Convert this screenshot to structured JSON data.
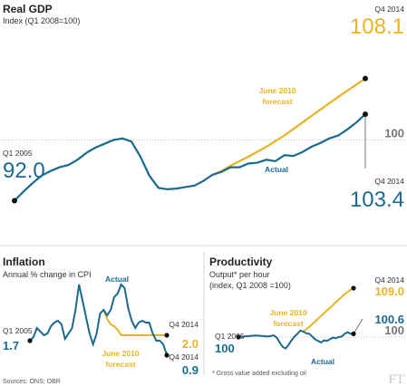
{
  "colors": {
    "actual": "#1a6a8f",
    "forecast": "#e8b424",
    "grid": "#aaaaaa",
    "marker": "#111111"
  },
  "chart_data": [
    {
      "type": "line",
      "title": "Real GDP",
      "subtitle": "Index (Q1 2008=100)",
      "reference_value": 100,
      "reference_label": "100",
      "ylim": [
        88,
        112
      ],
      "series": [
        {
          "name": "Actual",
          "x": [
            2005.0,
            2005.25,
            2005.5,
            2005.75,
            2006.0,
            2006.25,
            2006.5,
            2006.75,
            2007.0,
            2007.25,
            2007.5,
            2007.75,
            2008.0,
            2008.25,
            2008.5,
            2008.75,
            2009.0,
            2009.25,
            2009.5,
            2009.75,
            2010.0,
            2010.25,
            2010.5,
            2010.75,
            2011.0,
            2011.25,
            2011.5,
            2011.75,
            2012.0,
            2012.25,
            2012.5,
            2012.75,
            2013.0,
            2013.25,
            2013.5,
            2013.75,
            2014.0,
            2014.25,
            2014.5,
            2014.75
          ],
          "values": [
            92.0,
            93.2,
            94.3,
            95.3,
            95.9,
            96.4,
            96.7,
            97.4,
            98.3,
            99.0,
            99.5,
            100.0,
            100.2,
            99.8,
            97.8,
            95.3,
            93.7,
            93.5,
            93.6,
            93.8,
            94.0,
            94.6,
            95.4,
            95.8,
            96.4,
            96.4,
            96.9,
            97.0,
            97.4,
            97.2,
            98.0,
            97.9,
            98.4,
            99.1,
            99.6,
            100.2,
            100.6,
            101.4,
            102.3,
            103.4
          ]
        },
        {
          "name": "June 2010 forecast",
          "x": [
            2010.5,
            2010.75,
            2011.0,
            2011.5,
            2012.0,
            2012.5,
            2013.0,
            2013.5,
            2014.0,
            2014.5,
            2014.75
          ],
          "values": [
            95.4,
            95.9,
            96.6,
            97.8,
            99.1,
            100.6,
            102.3,
            104.0,
            105.7,
            107.3,
            108.1
          ]
        }
      ],
      "labels": {
        "start_period": "Q1 2005",
        "start_value": "92.0",
        "end_period_forecast": "Q4 2014",
        "end_value_forecast": "108.1",
        "end_period_actual": "Q4 2014",
        "end_value_actual": "103.4",
        "forecast_line1": "June 2010",
        "forecast_line2": "forecast",
        "actual": "Actual"
      }
    },
    {
      "type": "line",
      "title": "Inflation",
      "subtitle": "Annual % change in CPI",
      "ylim": [
        0,
        5.5
      ],
      "series": [
        {
          "name": "Actual",
          "x": [
            2005.0,
            2005.25,
            2005.5,
            2005.75,
            2006.0,
            2006.25,
            2006.5,
            2006.75,
            2007.0,
            2007.25,
            2007.5,
            2007.75,
            2008.0,
            2008.25,
            2008.5,
            2008.75,
            2009.0,
            2009.25,
            2009.5,
            2009.75,
            2010.0,
            2010.25,
            2010.5,
            2010.75,
            2011.0,
            2011.25,
            2011.5,
            2011.75,
            2012.0,
            2012.25,
            2012.5,
            2012.75,
            2013.0,
            2013.25,
            2013.5,
            2013.75,
            2014.0,
            2014.25,
            2014.5,
            2014.75
          ],
          "values": [
            1.7,
            1.9,
            2.4,
            2.2,
            2.0,
            2.1,
            2.5,
            2.7,
            2.8,
            2.6,
            1.8,
            2.1,
            2.4,
            3.4,
            4.8,
            3.9,
            3.0,
            2.1,
            1.5,
            2.1,
            3.2,
            3.4,
            3.1,
            3.4,
            4.1,
            4.3,
            4.8,
            4.6,
            3.5,
            2.8,
            2.4,
            2.7,
            2.8,
            2.7,
            2.7,
            2.1,
            1.7,
            1.7,
            1.5,
            0.9
          ]
        },
        {
          "name": "June 2010 forecast",
          "x": [
            2010.25,
            2010.5,
            2010.75,
            2011.0,
            2011.25,
            2011.5,
            2011.75,
            2012.0,
            2012.5,
            2013.0,
            2013.5,
            2014.0,
            2014.5,
            2014.75
          ],
          "values": [
            3.4,
            2.9,
            2.6,
            2.5,
            2.3,
            2.0,
            2.0,
            2.0,
            2.0,
            2.0,
            2.0,
            2.0,
            2.0,
            2.0
          ]
        }
      ],
      "labels": {
        "start_period": "Q1 2005",
        "start_value": "1.7",
        "end_period": "Q4 2014",
        "end_value_forecast": "2.0",
        "end_value_actual": "0.9",
        "forecast_line1": "June 2010",
        "forecast_line2": "forecast",
        "actual": "Actual"
      }
    },
    {
      "type": "line",
      "title": "Productivity",
      "subtitle_line1": "Output* per hour",
      "subtitle_line2": "(index, Q1 2008 =100)",
      "footnote": "* Gross value added excluding oil",
      "reference_value": 100,
      "reference_label": "100",
      "ylim": [
        94,
        112
      ],
      "series": [
        {
          "name": "Actual",
          "x": [
            2005.0,
            2005.5,
            2006.0,
            2006.5,
            2007.0,
            2007.5,
            2008.0,
            2008.25,
            2008.5,
            2008.75,
            2009.0,
            2009.25,
            2009.5,
            2009.75,
            2010.0,
            2010.25,
            2010.5,
            2010.75,
            2011.0,
            2011.25,
            2011.5,
            2011.75,
            2012.0,
            2012.25,
            2012.5,
            2012.75,
            2013.0,
            2013.25,
            2013.5,
            2013.75,
            2014.0,
            2014.25,
            2014.5,
            2014.75
          ],
          "values": [
            100.0,
            100.1,
            100.2,
            100.3,
            100.2,
            100.1,
            100.3,
            99.9,
            99.0,
            98.2,
            97.9,
            98.6,
            99.4,
            100.1,
            100.6,
            101.2,
            101.0,
            100.7,
            100.6,
            100.1,
            99.6,
            99.3,
            99.0,
            99.4,
            99.3,
            99.6,
            99.9,
            99.8,
            100.0,
            100.1,
            100.6,
            100.9,
            100.6,
            100.6
          ]
        },
        {
          "name": "June 2010 forecast",
          "x": [
            2010.5,
            2011.0,
            2011.5,
            2012.0,
            2012.5,
            2013.0,
            2013.5,
            2014.0,
            2014.5,
            2014.75
          ],
          "values": [
            101.0,
            101.9,
            102.9,
            103.9,
            104.9,
            105.9,
            106.9,
            107.9,
            108.7,
            109.0
          ]
        }
      ],
      "labels": {
        "start_period": "Q1 2005",
        "start_value": "100",
        "end_period": "Q4 2014",
        "end_value_forecast": "109.0",
        "end_value_actual": "100.6",
        "forecast_line1": "June 2010",
        "forecast_line2": "forecast",
        "actual": "Actual"
      }
    }
  ],
  "source": "Sources: ONS; OBR",
  "brand": "FT"
}
